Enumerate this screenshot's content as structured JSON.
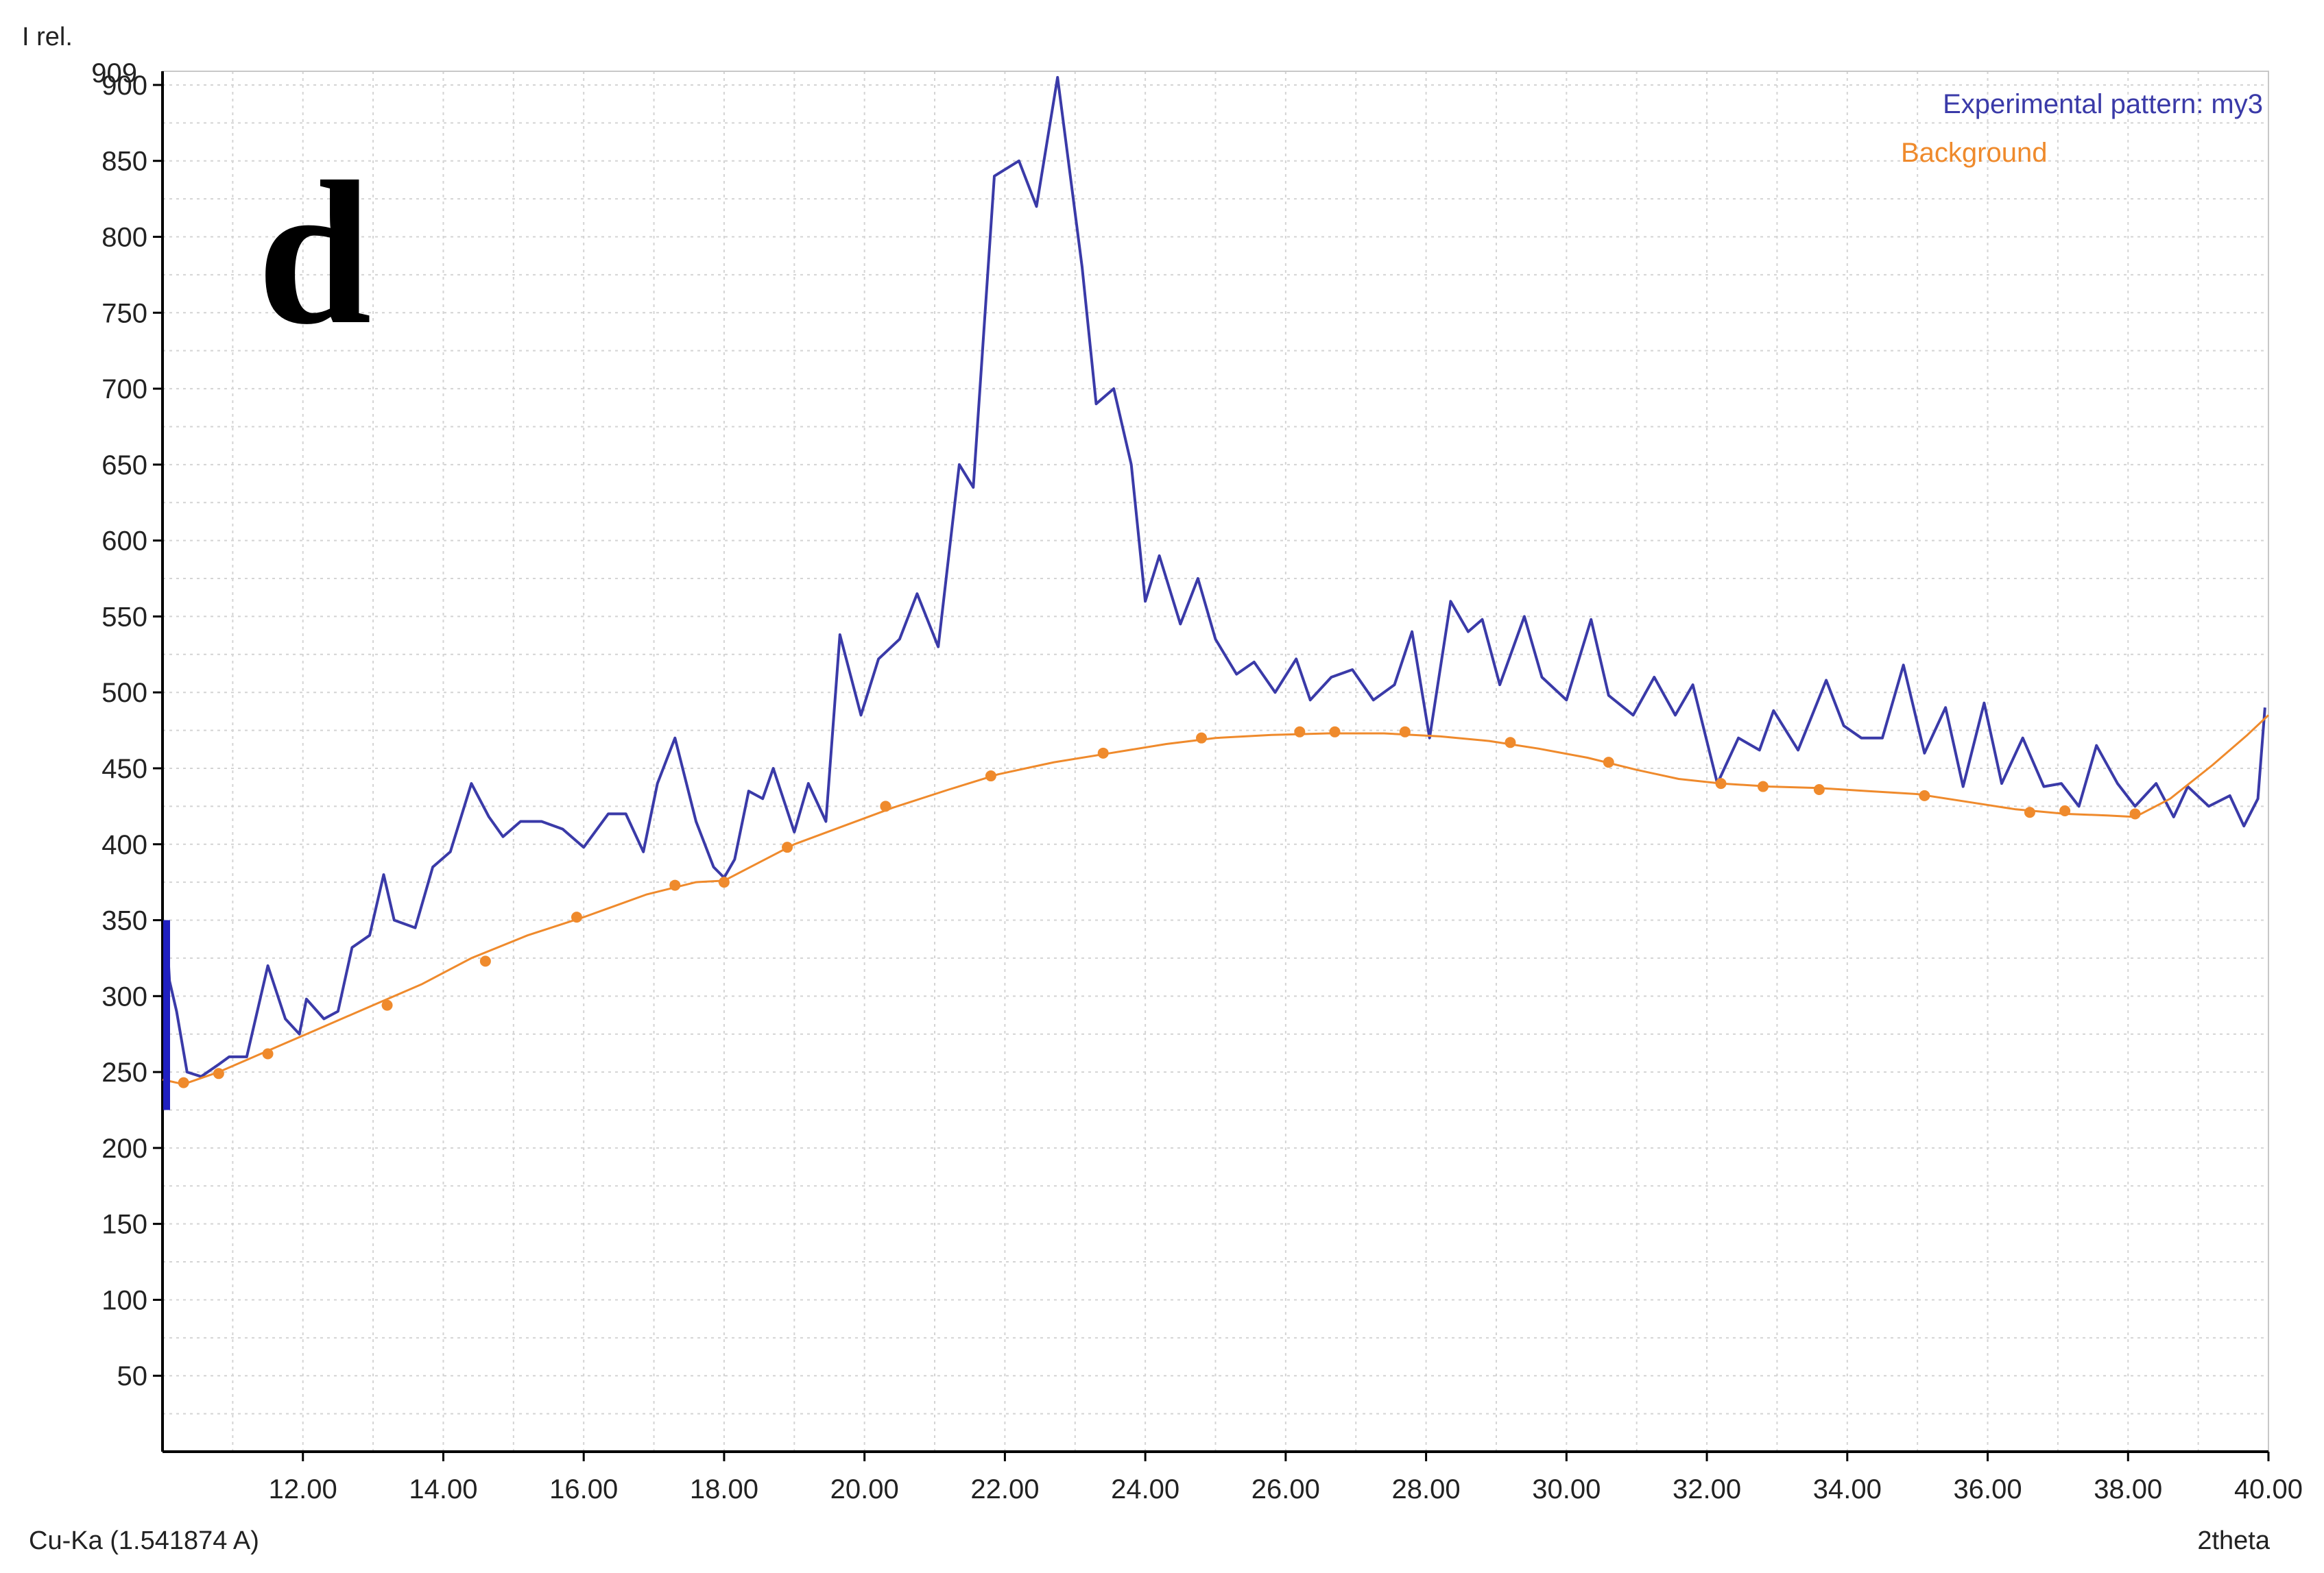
{
  "chart_data": {
    "type": "line",
    "panel_label": "d",
    "ylabel": "I rel.",
    "xlabel": "2theta",
    "radiation": "Cu-Ka (1.541874 A)",
    "ymax_label": "909",
    "xlim": [
      10.0,
      40.0
    ],
    "ylim": [
      0,
      909
    ],
    "grid": true,
    "legend_position": "top-right",
    "x_ticks": [
      {
        "value": 12,
        "label": "12.00"
      },
      {
        "value": 14,
        "label": "14.00"
      },
      {
        "value": 16,
        "label": "16.00"
      },
      {
        "value": 18,
        "label": "18.00"
      },
      {
        "value": 20,
        "label": "20.00"
      },
      {
        "value": 22,
        "label": "22.00"
      },
      {
        "value": 24,
        "label": "24.00"
      },
      {
        "value": 26,
        "label": "26.00"
      },
      {
        "value": 28,
        "label": "28.00"
      },
      {
        "value": 30,
        "label": "30.00"
      },
      {
        "value": 32,
        "label": "32.00"
      },
      {
        "value": 34,
        "label": "34.00"
      },
      {
        "value": 36,
        "label": "36.00"
      },
      {
        "value": 38,
        "label": "38.00"
      },
      {
        "value": 40,
        "label": "40.00"
      }
    ],
    "y_ticks": [
      {
        "value": 50,
        "label": "50"
      },
      {
        "value": 100,
        "label": "100"
      },
      {
        "value": 150,
        "label": "150"
      },
      {
        "value": 200,
        "label": "200"
      },
      {
        "value": 250,
        "label": "250"
      },
      {
        "value": 300,
        "label": "300"
      },
      {
        "value": 350,
        "label": "350"
      },
      {
        "value": 400,
        "label": "400"
      },
      {
        "value": 450,
        "label": "450"
      },
      {
        "value": 500,
        "label": "500"
      },
      {
        "value": 550,
        "label": "550"
      },
      {
        "value": 600,
        "label": "600"
      },
      {
        "value": 650,
        "label": "650"
      },
      {
        "value": 700,
        "label": "700"
      },
      {
        "value": 750,
        "label": "750"
      },
      {
        "value": 800,
        "label": "800"
      },
      {
        "value": 850,
        "label": "850"
      },
      {
        "value": 900,
        "label": "900"
      }
    ],
    "series": [
      {
        "name": "Experimental pattern: my3",
        "color": "#3a3aa8",
        "points": [
          [
            10.05,
            350
          ],
          [
            10.1,
            310
          ],
          [
            10.2,
            290
          ],
          [
            10.35,
            250
          ],
          [
            10.55,
            247
          ],
          [
            10.8,
            255
          ],
          [
            10.95,
            260
          ],
          [
            11.2,
            260
          ],
          [
            11.5,
            320
          ],
          [
            11.75,
            285
          ],
          [
            11.95,
            275
          ],
          [
            12.05,
            298
          ],
          [
            12.3,
            285
          ],
          [
            12.5,
            290
          ],
          [
            12.7,
            332
          ],
          [
            12.95,
            340
          ],
          [
            13.15,
            380
          ],
          [
            13.3,
            350
          ],
          [
            13.6,
            345
          ],
          [
            13.85,
            385
          ],
          [
            14.1,
            395
          ],
          [
            14.4,
            440
          ],
          [
            14.65,
            418
          ],
          [
            14.85,
            405
          ],
          [
            15.1,
            415
          ],
          [
            15.4,
            415
          ],
          [
            15.7,
            410
          ],
          [
            16.0,
            398
          ],
          [
            16.35,
            420
          ],
          [
            16.6,
            420
          ],
          [
            16.85,
            395
          ],
          [
            17.05,
            440
          ],
          [
            17.3,
            470
          ],
          [
            17.6,
            415
          ],
          [
            17.85,
            385
          ],
          [
            18.0,
            378
          ],
          [
            18.15,
            390
          ],
          [
            18.35,
            435
          ],
          [
            18.55,
            430
          ],
          [
            18.7,
            450
          ],
          [
            19.0,
            408
          ],
          [
            19.2,
            440
          ],
          [
            19.45,
            415
          ],
          [
            19.65,
            538
          ],
          [
            19.95,
            485
          ],
          [
            20.2,
            522
          ],
          [
            20.5,
            535
          ],
          [
            20.75,
            565
          ],
          [
            21.05,
            530
          ],
          [
            21.35,
            650
          ],
          [
            21.55,
            635
          ],
          [
            21.85,
            840
          ],
          [
            22.2,
            850
          ],
          [
            22.45,
            820
          ],
          [
            22.75,
            905
          ],
          [
            23.1,
            780
          ],
          [
            23.3,
            690
          ],
          [
            23.55,
            700
          ],
          [
            23.8,
            650
          ],
          [
            24.0,
            560
          ],
          [
            24.2,
            590
          ],
          [
            24.5,
            545
          ],
          [
            24.75,
            575
          ],
          [
            25.0,
            535
          ],
          [
            25.3,
            512
          ],
          [
            25.55,
            520
          ],
          [
            25.85,
            500
          ],
          [
            26.15,
            522
          ],
          [
            26.35,
            495
          ],
          [
            26.65,
            510
          ],
          [
            26.95,
            515
          ],
          [
            27.25,
            495
          ],
          [
            27.55,
            505
          ],
          [
            27.8,
            540
          ],
          [
            28.05,
            470
          ],
          [
            28.35,
            560
          ],
          [
            28.6,
            540
          ],
          [
            28.8,
            548
          ],
          [
            29.05,
            505
          ],
          [
            29.4,
            550
          ],
          [
            29.65,
            510
          ],
          [
            30.0,
            495
          ],
          [
            30.35,
            548
          ],
          [
            30.6,
            498
          ],
          [
            30.95,
            485
          ],
          [
            31.25,
            510
          ],
          [
            31.55,
            485
          ],
          [
            31.8,
            505
          ],
          [
            32.15,
            440
          ],
          [
            32.45,
            470
          ],
          [
            32.75,
            462
          ],
          [
            32.95,
            488
          ],
          [
            33.3,
            462
          ],
          [
            33.7,
            508
          ],
          [
            33.95,
            478
          ],
          [
            34.2,
            470
          ],
          [
            34.5,
            470
          ],
          [
            34.8,
            518
          ],
          [
            35.1,
            460
          ],
          [
            35.4,
            490
          ],
          [
            35.65,
            438
          ],
          [
            35.95,
            493
          ],
          [
            36.2,
            440
          ],
          [
            36.5,
            470
          ],
          [
            36.8,
            438
          ],
          [
            37.05,
            440
          ],
          [
            37.3,
            425
          ],
          [
            37.55,
            465
          ],
          [
            37.85,
            440
          ],
          [
            38.1,
            425
          ],
          [
            38.4,
            440
          ],
          [
            38.65,
            418
          ],
          [
            38.85,
            438
          ],
          [
            39.15,
            425
          ],
          [
            39.45,
            432
          ],
          [
            39.65,
            412
          ],
          [
            39.85,
            430
          ],
          [
            39.95,
            490
          ]
        ]
      },
      {
        "name": "Background",
        "color": "#ef8a2c",
        "points": [
          [
            10.0,
            245
          ],
          [
            10.3,
            242
          ],
          [
            10.8,
            250
          ],
          [
            11.4,
            262
          ],
          [
            12.2,
            278
          ],
          [
            12.9,
            292
          ],
          [
            13.7,
            308
          ],
          [
            14.4,
            325
          ],
          [
            15.2,
            340
          ],
          [
            16.0,
            352
          ],
          [
            16.9,
            367
          ],
          [
            17.6,
            375
          ],
          [
            18.0,
            376
          ],
          [
            18.5,
            388
          ],
          [
            19.0,
            400
          ],
          [
            19.7,
            412
          ],
          [
            20.4,
            424
          ],
          [
            21.2,
            436
          ],
          [
            21.9,
            446
          ],
          [
            22.7,
            454
          ],
          [
            23.5,
            460
          ],
          [
            24.3,
            466
          ],
          [
            25.0,
            470
          ],
          [
            25.8,
            472
          ],
          [
            26.6,
            473
          ],
          [
            27.4,
            473
          ],
          [
            28.2,
            471
          ],
          [
            28.9,
            468
          ],
          [
            29.6,
            463
          ],
          [
            30.3,
            457
          ],
          [
            31.0,
            449
          ],
          [
            31.6,
            443
          ],
          [
            32.2,
            440
          ],
          [
            32.9,
            438
          ],
          [
            33.6,
            437
          ],
          [
            34.3,
            435
          ],
          [
            35.0,
            433
          ],
          [
            35.7,
            428
          ],
          [
            36.4,
            423
          ],
          [
            37.1,
            420
          ],
          [
            37.7,
            419
          ],
          [
            38.1,
            418
          ],
          [
            38.6,
            430
          ],
          [
            39.2,
            452
          ],
          [
            39.7,
            472
          ],
          [
            40.0,
            485
          ]
        ],
        "markers": [
          [
            10.3,
            243
          ],
          [
            10.8,
            249
          ],
          [
            11.5,
            262
          ],
          [
            13.2,
            294
          ],
          [
            14.6,
            323
          ],
          [
            15.9,
            352
          ],
          [
            17.3,
            373
          ],
          [
            18.0,
            375
          ],
          [
            18.9,
            398
          ],
          [
            20.3,
            425
          ],
          [
            21.8,
            445
          ],
          [
            23.4,
            460
          ],
          [
            24.8,
            470
          ],
          [
            26.2,
            474
          ],
          [
            26.7,
            474
          ],
          [
            27.7,
            474
          ],
          [
            29.2,
            467
          ],
          [
            30.6,
            454
          ],
          [
            32.2,
            440
          ],
          [
            32.8,
            438
          ],
          [
            33.6,
            436
          ],
          [
            35.1,
            432
          ],
          [
            36.6,
            421
          ],
          [
            37.1,
            422
          ],
          [
            38.1,
            420
          ]
        ]
      }
    ]
  }
}
